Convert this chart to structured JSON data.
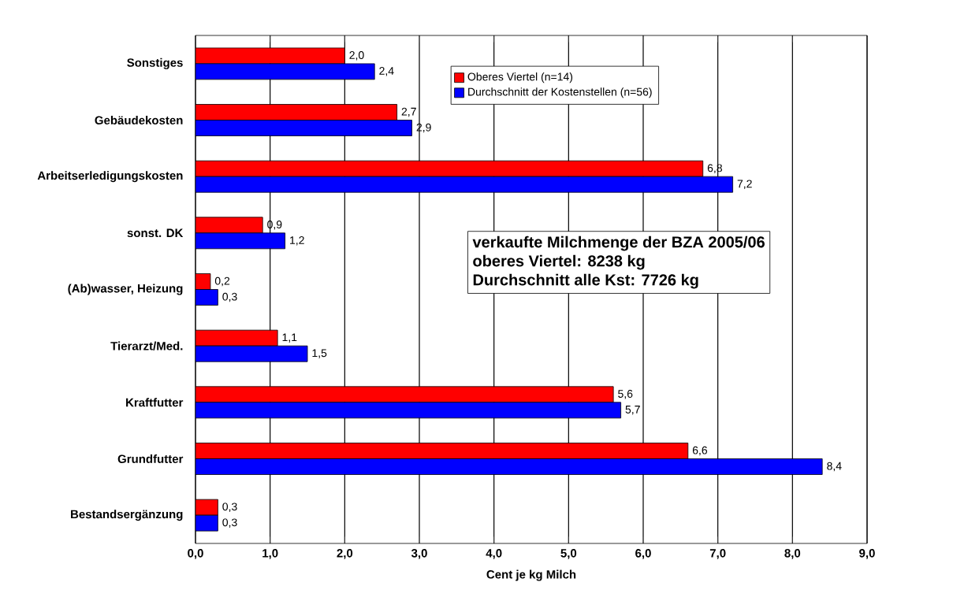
{
  "chart_data": {
    "type": "bar",
    "orientation": "horizontal",
    "xlabel": "Cent je kg Milch",
    "categories": [
      "Sonstiges",
      "Gebäudekosten",
      "Arbeitserledigungskosten",
      "sonst. DK",
      "(Ab)wasser, Heizung",
      "Tierarzt/Med.",
      "Kraftfutter",
      "Grundfutter",
      "Bestandsergänzung"
    ],
    "series": [
      {
        "name": "Oberes Viertel (n=14)",
        "color": "#ff0000",
        "values": [
          2.0,
          2.7,
          6.8,
          0.9,
          0.2,
          1.1,
          5.6,
          6.6,
          0.3
        ],
        "value_labels": [
          "2,0",
          "2,7",
          "6,8",
          "0,9",
          "0,2",
          "1,1",
          "5,6",
          "6,6",
          "0,3"
        ]
      },
      {
        "name": "Durchschnitt der Kostenstellen (n=56)",
        "color": "#0000ff",
        "values": [
          2.4,
          2.9,
          7.2,
          1.2,
          0.3,
          1.5,
          5.7,
          8.4,
          0.3
        ],
        "value_labels": [
          "2,4",
          "2,9",
          "7,2",
          "1,2",
          "0,3",
          "1,5",
          "5,7",
          "8,4",
          "0,3"
        ]
      }
    ],
    "xlim": [
      0,
      9
    ],
    "xticks": [
      {
        "value": 0,
        "label": "0,0"
      },
      {
        "value": 1,
        "label": "1,0"
      },
      {
        "value": 2,
        "label": "2,0"
      },
      {
        "value": 3,
        "label": "3,0"
      },
      {
        "value": 4,
        "label": "4,0"
      },
      {
        "value": 5,
        "label": "5,0"
      },
      {
        "value": 6,
        "label": "6,0"
      },
      {
        "value": 7,
        "label": "7,0"
      },
      {
        "value": 8,
        "label": "8,0"
      },
      {
        "value": 9,
        "label": "9,0"
      }
    ],
    "grid": "x",
    "legend": "top right",
    "annotations": [
      "verkaufte Milchmenge der BZA 2005/06",
      "oberes Viertel: 8238 kg",
      "Durchschnitt alle Kst: 7726 kg"
    ]
  }
}
